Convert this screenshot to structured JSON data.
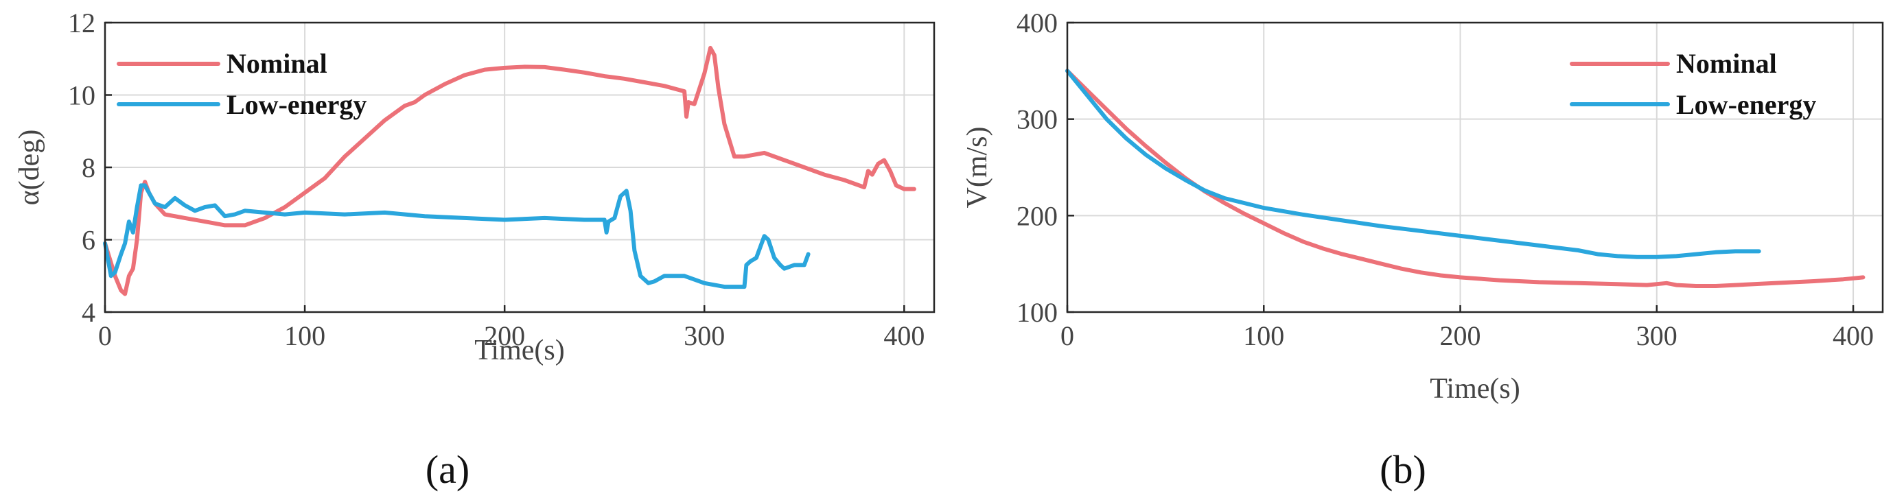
{
  "chart_data": [
    {
      "type": "line",
      "caption": "(a)",
      "xlabel": "Time(s)",
      "ylabel": "α(deg)",
      "xlim": [
        0,
        415
      ],
      "ylim": [
        4,
        12
      ],
      "xticks": [
        0,
        100,
        200,
        300,
        400
      ],
      "yticks": [
        4,
        6,
        8,
        10,
        12
      ],
      "grid": true,
      "legend": "top-left",
      "series": [
        {
          "name": "Nominal",
          "color": "#ec7178",
          "x": [
            0,
            5,
            8,
            10,
            12,
            14,
            16,
            18,
            20,
            22,
            25,
            30,
            40,
            50,
            60,
            70,
            80,
            90,
            100,
            110,
            120,
            130,
            140,
            150,
            155,
            160,
            170,
            180,
            190,
            200,
            210,
            220,
            230,
            240,
            250,
            260,
            270,
            280,
            290,
            291,
            292,
            295,
            300,
            303,
            305,
            307,
            310,
            315,
            320,
            330,
            340,
            350,
            360,
            370,
            380,
            382,
            384,
            387,
            390,
            393,
            396,
            400,
            405
          ],
          "y": [
            5.9,
            5.0,
            4.6,
            4.5,
            5.0,
            5.2,
            6.0,
            7.3,
            7.6,
            7.3,
            7.0,
            6.7,
            6.6,
            6.5,
            6.4,
            6.4,
            6.6,
            6.9,
            7.3,
            7.7,
            8.3,
            8.8,
            9.3,
            9.7,
            9.8,
            10.0,
            10.3,
            10.55,
            10.7,
            10.75,
            10.78,
            10.77,
            10.7,
            10.62,
            10.52,
            10.45,
            10.35,
            10.25,
            10.1,
            9.4,
            9.8,
            9.75,
            10.6,
            11.3,
            11.1,
            10.2,
            9.2,
            8.3,
            8.3,
            8.4,
            8.2,
            8.0,
            7.8,
            7.65,
            7.45,
            7.9,
            7.8,
            8.1,
            8.2,
            7.9,
            7.5,
            7.4,
            7.4
          ]
        },
        {
          "name": "Low-energy",
          "color": "#2aa6dd",
          "x": [
            0,
            3,
            5,
            8,
            10,
            12,
            14,
            16,
            18,
            20,
            22,
            25,
            30,
            35,
            40,
            45,
            50,
            55,
            60,
            65,
            70,
            80,
            90,
            100,
            120,
            140,
            160,
            180,
            200,
            220,
            240,
            250,
            251,
            252,
            255,
            258,
            261,
            263,
            265,
            268,
            272,
            275,
            280,
            290,
            300,
            310,
            320,
            321,
            323,
            326,
            330,
            332,
            335,
            338,
            340,
            345,
            350,
            352
          ],
          "y": [
            5.9,
            5.0,
            5.1,
            5.6,
            5.9,
            6.5,
            6.2,
            6.9,
            7.5,
            7.5,
            7.3,
            7.0,
            6.9,
            7.15,
            6.95,
            6.8,
            6.9,
            6.95,
            6.65,
            6.7,
            6.8,
            6.75,
            6.7,
            6.75,
            6.7,
            6.75,
            6.65,
            6.6,
            6.55,
            6.6,
            6.55,
            6.55,
            6.2,
            6.5,
            6.6,
            7.2,
            7.35,
            6.8,
            5.7,
            5.0,
            4.8,
            4.85,
            5.0,
            5.0,
            4.8,
            4.7,
            4.7,
            5.3,
            5.4,
            5.5,
            6.1,
            6.0,
            5.5,
            5.3,
            5.2,
            5.3,
            5.3,
            5.6
          ]
        }
      ]
    },
    {
      "type": "line",
      "caption": "(b)",
      "xlabel": "Time(s)",
      "ylabel": "V(m/s)",
      "xlim": [
        0,
        415
      ],
      "ylim": [
        100,
        400
      ],
      "xticks": [
        0,
        100,
        200,
        300,
        400
      ],
      "yticks": [
        100,
        200,
        300,
        400
      ],
      "grid": true,
      "legend": "top-right",
      "series": [
        {
          "name": "Nominal",
          "color": "#ec7178",
          "x": [
            0,
            10,
            20,
            30,
            40,
            50,
            60,
            70,
            80,
            90,
            100,
            110,
            120,
            130,
            140,
            150,
            160,
            170,
            180,
            190,
            200,
            220,
            240,
            260,
            280,
            295,
            300,
            305,
            310,
            320,
            330,
            340,
            360,
            380,
            395,
            400,
            405
          ],
          "y": [
            350,
            330,
            310,
            290,
            272,
            255,
            239,
            225,
            213,
            202,
            192,
            182,
            173,
            166,
            160,
            155,
            150,
            145,
            141,
            138,
            136,
            133,
            131,
            130,
            129,
            128,
            129,
            130,
            128,
            127,
            127,
            128,
            130,
            132,
            134,
            135,
            136
          ]
        },
        {
          "name": "Low-energy",
          "color": "#2aa6dd",
          "x": [
            0,
            10,
            20,
            30,
            40,
            50,
            60,
            70,
            80,
            90,
            100,
            120,
            140,
            160,
            180,
            200,
            220,
            240,
            260,
            270,
            280,
            290,
            300,
            310,
            320,
            330,
            340,
            352
          ],
          "y": [
            350,
            325,
            300,
            280,
            263,
            249,
            237,
            226,
            218,
            213,
            208,
            201,
            195,
            189,
            184,
            179,
            174,
            169,
            164,
            160,
            158,
            157,
            157,
            158,
            160,
            162,
            163,
            163
          ]
        }
      ]
    }
  ]
}
